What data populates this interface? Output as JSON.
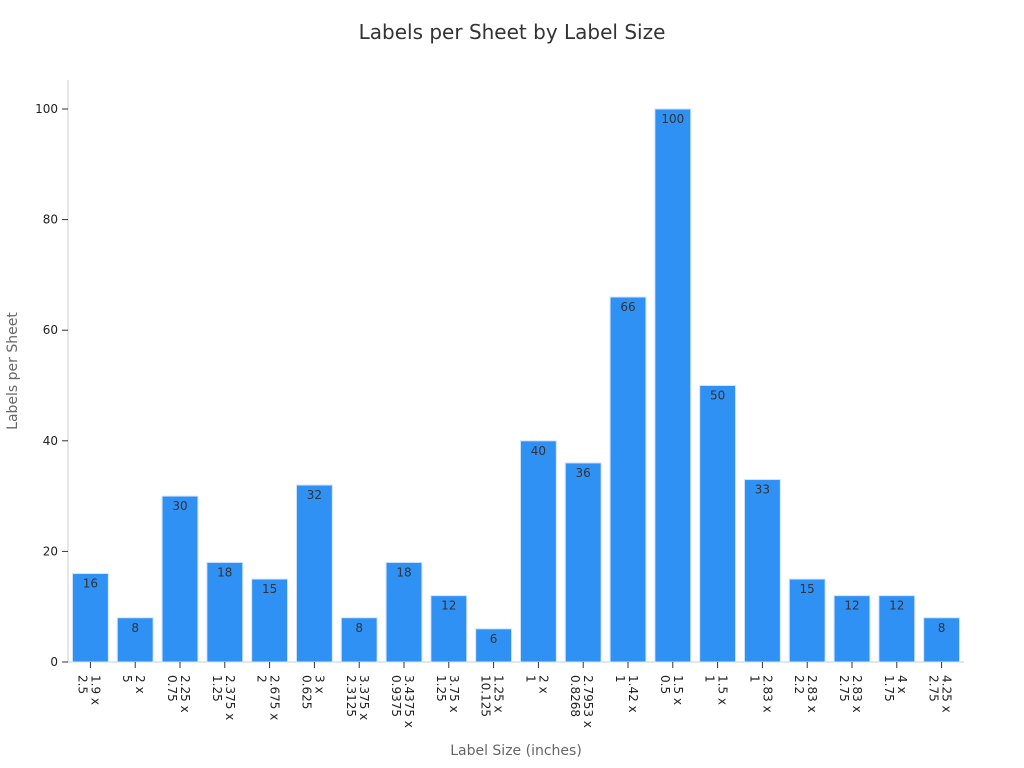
{
  "chart_data": {
    "type": "bar",
    "title": "Labels per Sheet by Label Size",
    "xlabel": "Label Size (inches)",
    "ylabel": "Labels per Sheet",
    "ylim": [
      0,
      105
    ],
    "yticks": [
      0,
      20,
      40,
      60,
      80,
      100
    ],
    "grid": false,
    "bar_color": "#3091f5",
    "categories": [
      [
        "1.9 x",
        "2.5"
      ],
      [
        "2 x",
        "5"
      ],
      [
        "2.25 x",
        "0.75"
      ],
      [
        "2.375 x",
        "1.25"
      ],
      [
        "2.675 x",
        "2"
      ],
      [
        "3 x",
        "0.625"
      ],
      [
        "3.375 x",
        "2.3125"
      ],
      [
        "3.4375 x",
        "0.9375"
      ],
      [
        "3.75 x",
        "1.25"
      ],
      [
        "1.25 x",
        "10.125"
      ],
      [
        "2 x",
        "1"
      ],
      [
        "2.7953 x",
        "0.8268"
      ],
      [
        "1.42 x",
        "1"
      ],
      [
        "1.5 x",
        "0.5"
      ],
      [
        "1.5 x",
        "1"
      ],
      [
        "2.83 x",
        "1"
      ],
      [
        "2.83 x",
        "2.2"
      ],
      [
        "2.83 x",
        "2.75"
      ],
      [
        "4 x",
        "1.75"
      ],
      [
        "4.25 x",
        "2.75"
      ]
    ],
    "values": [
      16,
      8,
      30,
      18,
      15,
      32,
      8,
      18,
      12,
      6,
      40,
      36,
      66,
      100,
      50,
      33,
      15,
      12,
      12,
      8
    ]
  }
}
